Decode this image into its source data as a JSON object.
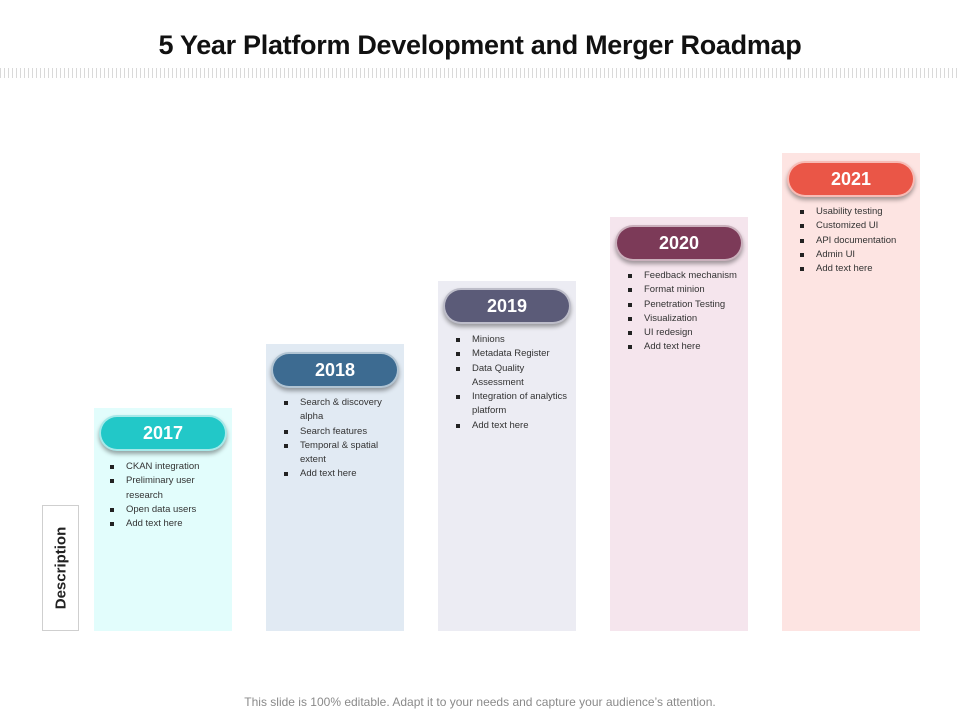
{
  "title": "5 Year Platform Development and Merger  Roadmap",
  "side_label": "Description",
  "footer": "This slide is 100% editable. Adapt it to your needs and capture your audience’s attention.",
  "years": [
    {
      "year": "2017",
      "accent": "#22c8c8",
      "panel": "#e2fdfc",
      "items": [
        "CKAN integration",
        "Preliminary user research",
        "Open data users",
        "Add text here"
      ]
    },
    {
      "year": "2018",
      "accent": "#3d6b91",
      "panel": "#e1eaf3",
      "items": [
        "Search & discovery alpha",
        "Search features",
        "Temporal  & spatial extent",
        "Add text here"
      ]
    },
    {
      "year": "2019",
      "accent": "#5b5b78",
      "panel": "#ececf3",
      "items": [
        "Minions",
        "Metadata  Register",
        "Data Quality Assessment",
        "Integration  of analytics platform",
        "Add text here"
      ]
    },
    {
      "year": "2020",
      "accent": "#7c3a58",
      "panel": "#f5e5ed",
      "items": [
        "Feedback mechanism",
        "Format  minion",
        "Penetration   Testing",
        "Visualization",
        "UI redesign",
        "Add text here"
      ]
    },
    {
      "year": "2021",
      "accent": "#ea5647",
      "panel": "#fde4e2",
      "items": [
        "Usability testing",
        "Customized  UI",
        "API documentation",
        "Admin UI",
        "Add text here"
      ]
    }
  ]
}
